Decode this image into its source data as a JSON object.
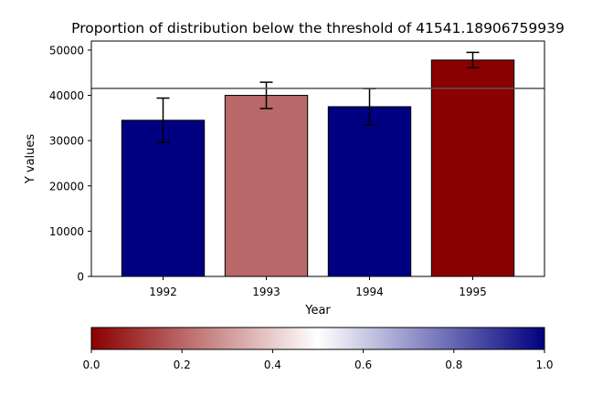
{
  "chart_data": {
    "type": "bar",
    "title": "Proportion of distribution below the threshold of 41541.18906759939",
    "xlabel": "Year",
    "ylabel": "Y values",
    "categories": [
      "1992",
      "1993",
      "1994",
      "1995"
    ],
    "values": [
      34500,
      40000,
      37500,
      47800
    ],
    "errors": [
      4900,
      2900,
      4000,
      1700
    ],
    "bar_colors": [
      "#000080",
      "#b86868",
      "#000080",
      "#8b0000"
    ],
    "threshold": 41541.18906759939,
    "ylim": [
      0,
      52000
    ],
    "yticks": [
      0,
      10000,
      20000,
      30000,
      40000,
      50000
    ],
    "grid": false,
    "colorbar": {
      "ticks": [
        "0.0",
        "0.2",
        "0.4",
        "0.6",
        "0.8",
        "1.0"
      ],
      "colors": [
        "#8b0000",
        "#ffffff",
        "#000080"
      ]
    }
  }
}
